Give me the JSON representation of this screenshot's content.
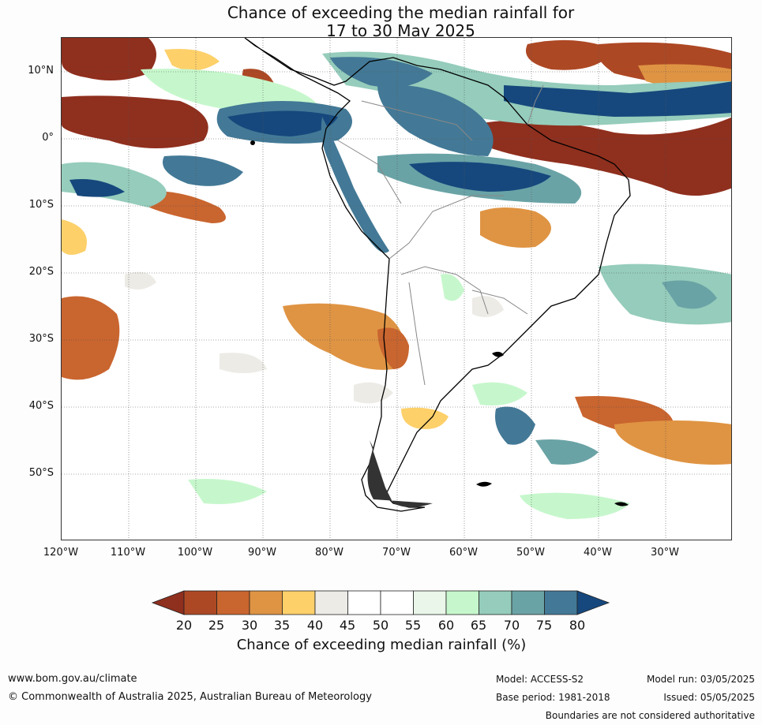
{
  "title": {
    "line1": "Chance of exceeding the median rainfall for",
    "line2": "17 to 30 May 2025"
  },
  "map": {
    "lat_labels": [
      "10°N",
      "0°",
      "10°S",
      "20°S",
      "30°S",
      "40°S",
      "50°S"
    ],
    "lon_labels": [
      "120°W",
      "110°W",
      "100°W",
      "90°W",
      "80°W",
      "70°W",
      "60°W",
      "50°W",
      "40°W",
      "30°W"
    ],
    "legend": {
      "ticks": [
        "20",
        "25",
        "30",
        "35",
        "40",
        "45",
        "50",
        "55",
        "60",
        "65",
        "70",
        "75",
        "80"
      ],
      "colors": [
        "#8f2f1e",
        "#ad4824",
        "#c9652f",
        "#df9443",
        "#fdd06a",
        "#edebe6",
        "#ffffff",
        "#ffffff",
        "#e9f6e9",
        "#c6f7cc",
        "#95ccbb",
        "#6aa3a6",
        "#437996",
        "#16487d"
      ],
      "label": "Chance of exceeding median rainfall (%)"
    }
  },
  "footer": {
    "website": "www.bom.gov.au/climate",
    "copyright": "© Commonwealth of Australia 2025, Australian Bureau of Meteorology",
    "model": "Model: ACCESS-S2",
    "base_period": "Base period: 1981-2018",
    "model_run": "Model run: 03/05/2025",
    "issued": "Issued: 05/05/2025",
    "disclaimer": "Boundaries are not considered authoritative"
  }
}
